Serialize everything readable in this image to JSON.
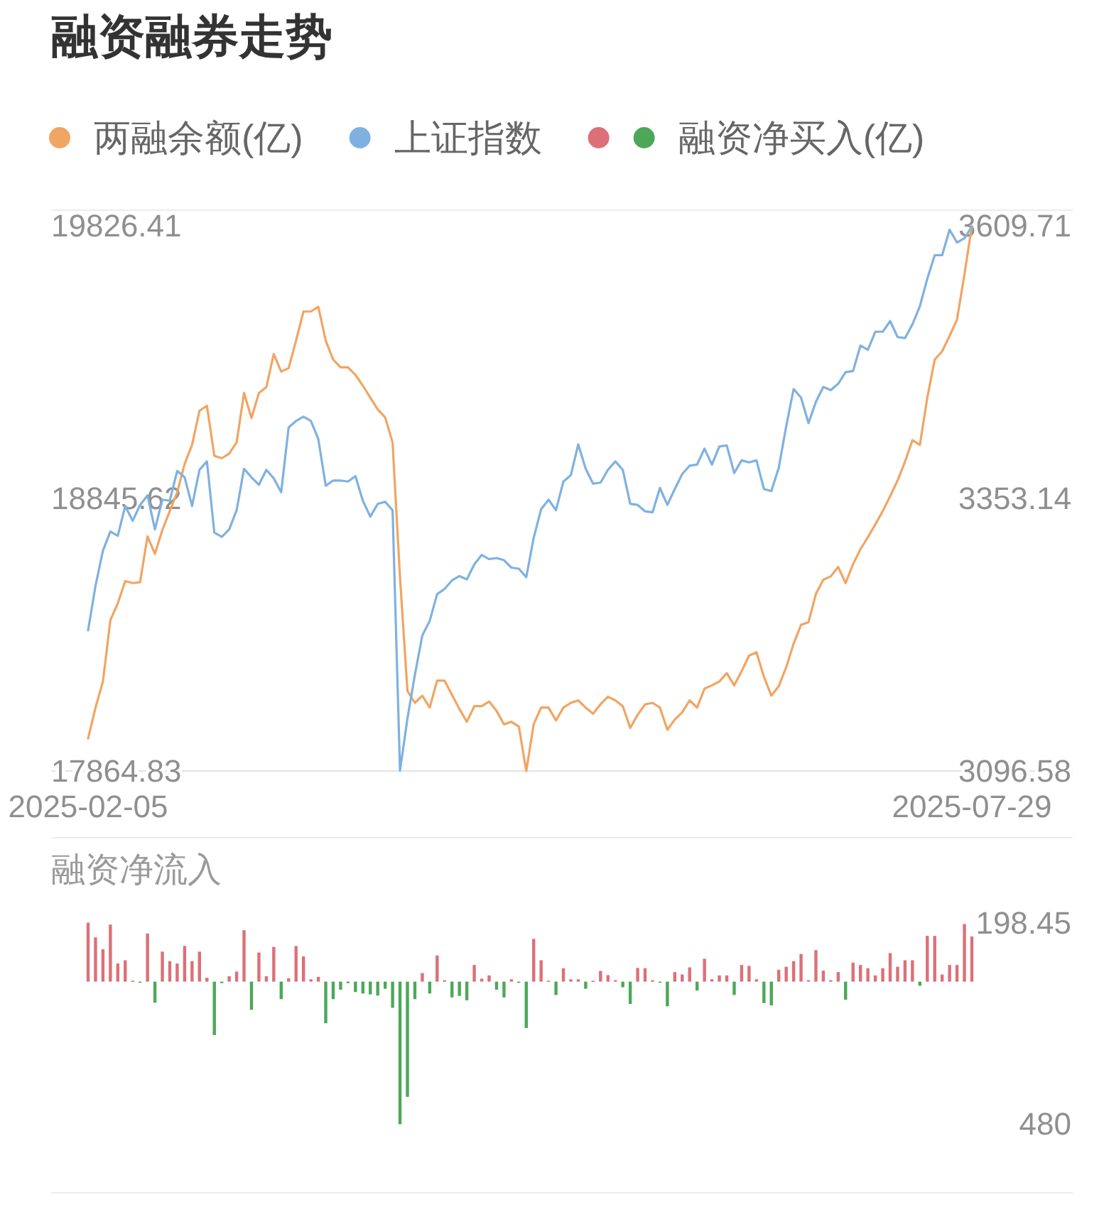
{
  "chart_data": [
    {
      "type": "line",
      "title": "融资融券走势",
      "legend": "top",
      "categories": [
        "2025-02-05",
        null,
        null,
        null,
        null,
        null,
        null,
        null,
        null,
        null,
        null,
        null,
        null,
        null,
        null,
        null,
        null,
        null,
        null,
        null,
        null,
        null,
        null,
        null,
        null,
        null,
        null,
        null,
        null,
        null,
        null,
        null,
        null,
        null,
        null,
        null,
        null,
        null,
        null,
        null,
        null,
        null,
        null,
        null,
        null,
        null,
        null,
        null,
        null,
        null,
        null,
        null,
        null,
        null,
        null,
        null,
        null,
        null,
        null,
        null,
        null,
        null,
        null,
        null,
        null,
        null,
        null,
        null,
        null,
        null,
        null,
        null,
        null,
        null,
        null,
        null,
        null,
        null,
        null,
        null,
        null,
        null,
        null,
        null,
        null,
        null,
        null,
        null,
        null,
        null,
        null,
        null,
        null,
        null,
        null,
        null,
        null,
        null,
        null,
        null,
        null,
        null,
        null,
        null,
        null,
        null,
        null,
        null,
        null,
        null,
        null,
        null,
        null,
        null,
        null,
        null,
        null,
        null,
        null,
        "2025-07-29"
      ],
      "series": [
        {
          "name": "两融余额(亿)",
          "color": "#f0a563",
          "values": [
            17982,
            18093,
            18187,
            18408,
            18468,
            18548,
            18541,
            18544,
            18709,
            18646,
            18732,
            18800,
            18868,
            18970,
            19038,
            19161,
            19179,
            18999,
            18990,
            19007,
            19047,
            19225,
            19135,
            19225,
            19246,
            19365,
            19302,
            19314,
            19413,
            19518,
            19518,
            19535,
            19413,
            19345,
            19317,
            19317,
            19290,
            19251,
            19208,
            19166,
            19137,
            19047,
            18561,
            18153,
            18110,
            18136,
            18093,
            18190,
            18190,
            18139,
            18088,
            18042,
            18098,
            18098,
            18115,
            18081,
            18033,
            18042,
            18025,
            17865,
            18033,
            18093,
            18093,
            18047,
            18093,
            18110,
            18119,
            18093,
            18071,
            18105,
            18132,
            18119,
            18098,
            18020,
            18067,
            18105,
            18110,
            18093,
            18013,
            18050,
            18076,
            18119,
            18093,
            18161,
            18173,
            18187,
            18217,
            18173,
            18224,
            18280,
            18292,
            18204,
            18136,
            18170,
            18238,
            18323,
            18391,
            18400,
            18502,
            18553,
            18565,
            18599,
            18541,
            18609,
            18663,
            18706,
            18752,
            18800,
            18854,
            18910,
            18978,
            19055,
            19038,
            19208,
            19345,
            19375,
            19430,
            19489,
            19651,
            19826
          ]
        },
        {
          "name": "上证指数",
          "color": "#7fb1e0",
          "axis": "y2",
          "values": [
            3229,
            3271,
            3304,
            3322,
            3318,
            3346,
            3332,
            3347,
            3356,
            3324,
            3352,
            3351,
            3379,
            3373,
            3346,
            3380,
            3388,
            3321,
            3317,
            3324,
            3342,
            3381,
            3373,
            3366,
            3380,
            3372,
            3359,
            3420,
            3426,
            3430,
            3426,
            3409,
            3365,
            3370,
            3370,
            3369,
            3374,
            3351,
            3336,
            3348,
            3350,
            3342,
            3097,
            3146,
            3187,
            3224,
            3238,
            3263,
            3268,
            3276,
            3280,
            3277,
            3291,
            3300,
            3296,
            3297,
            3295,
            3288,
            3287,
            3279,
            3316,
            3343,
            3352,
            3342,
            3369,
            3375,
            3404,
            3381,
            3367,
            3368,
            3380,
            3388,
            3380,
            3348,
            3347,
            3341,
            3340,
            3363,
            3347,
            3362,
            3376,
            3384,
            3385,
            3400,
            3385,
            3402,
            3403,
            3377,
            3389,
            3387,
            3389,
            3362,
            3360,
            3382,
            3421,
            3456,
            3448,
            3424,
            3444,
            3458,
            3455,
            3461,
            3472,
            3473,
            3497,
            3493,
            3510,
            3510,
            3520,
            3505,
            3504,
            3517,
            3534,
            3560,
            3582,
            3582,
            3606,
            3594,
            3598,
            3609
          ]
        }
      ],
      "ylim": [
        17864.83,
        19826.41
      ],
      "yticks": [
        17864.83,
        18845.62,
        19826.41
      ],
      "y2lim": [
        3096.58,
        3609.71
      ],
      "y2ticks": [
        3096.58,
        3353.14,
        3609.71
      ]
    },
    {
      "type": "bar",
      "title": "融资净流入",
      "legend": "top",
      "tick_labels": "y",
      "categories": [
        null,
        null,
        null,
        null,
        null,
        null,
        null,
        null,
        null,
        null,
        null,
        null,
        null,
        null,
        null,
        null,
        null,
        null,
        null,
        null,
        null,
        null,
        null,
        null,
        null,
        null,
        null,
        null,
        null,
        null,
        null,
        null,
        null,
        null,
        null,
        null,
        null,
        null,
        null,
        null,
        null,
        null,
        null,
        null,
        null,
        null,
        null,
        null,
        null,
        null,
        null,
        null,
        null,
        null,
        null,
        null,
        null,
        null,
        null,
        null,
        null,
        null,
        null,
        null,
        null,
        null,
        null,
        null,
        null,
        null,
        null,
        null,
        null,
        null,
        null,
        null,
        null,
        null,
        null,
        null,
        null,
        null,
        null,
        null,
        null,
        null,
        null,
        null,
        null,
        null,
        null,
        null,
        null,
        null,
        null,
        null,
        null,
        null,
        null,
        null,
        null,
        null,
        null,
        null,
        null,
        null,
        null,
        null,
        null,
        null,
        null,
        null,
        null,
        null,
        null,
        null,
        null,
        null,
        null,
        null
      ],
      "series": [
        {
          "name": "融资净买入(亿)",
          "colors": [
            "#dc7078",
            "#dc7078",
            "#dc7078",
            "#dc7078",
            "#dc7078",
            "#dc7078",
            "#dc7078",
            "#4ca858",
            "#dc7078",
            "#4ca858",
            "#dc7078",
            "#dc7078",
            "#dc7078",
            "#dc7078",
            "#dc7078",
            "#dc7078",
            "#dc7078",
            "#4ca858",
            "#4ca858",
            "#dc7078",
            "#dc7078",
            "#dc7078",
            "#4ca858",
            "#dc7078",
            "#dc7078",
            "#dc7078",
            "#4ca858",
            "#dc7078",
            "#dc7078",
            "#dc7078",
            "#dc7078",
            "#dc7078",
            "#4ca858",
            "#4ca858",
            "#4ca858",
            "#4ca858",
            "#4ca858",
            "#4ca858",
            "#4ca858",
            "#4ca858",
            "#4ca858",
            "#4ca858",
            "#4ca858",
            "#4ca858",
            "#4ca858",
            "#dc7078",
            "#4ca858",
            "#dc7078",
            "#dc7078",
            "#4ca858",
            "#4ca858",
            "#4ca858",
            "#dc7078",
            "#dc7078",
            "#dc7078",
            "#4ca858",
            "#4ca858",
            "#dc7078",
            "#4ca858",
            "#4ca858",
            "#dc7078",
            "#dc7078",
            "#dc7078",
            "#4ca858",
            "#dc7078",
            "#dc7078",
            "#dc7078",
            "#4ca858",
            "#dc7078",
            "#dc7078",
            "#dc7078",
            "#dc7078",
            "#4ca858",
            "#4ca858",
            "#dc7078",
            "#dc7078",
            "#dc7078",
            "#4ca858",
            "#4ca858",
            "#dc7078",
            "#dc7078",
            "#dc7078",
            "#4ca858",
            "#dc7078",
            "#dc7078",
            "#dc7078",
            "#dc7078",
            "#4ca858",
            "#dc7078",
            "#dc7078",
            "#dc7078",
            "#4ca858",
            "#4ca858",
            "#dc7078",
            "#dc7078",
            "#dc7078",
            "#dc7078",
            "#dc7078",
            "#dc7078",
            "#dc7078",
            "#dc7078",
            "#dc7078",
            "#4ca858",
            "#dc7078",
            "#dc7078",
            "#dc7078",
            "#dc7078",
            "#dc7078",
            "#dc7078",
            "#dc7078",
            "#dc7078",
            "#dc7078",
            "#4ca858",
            "#dc7078",
            "#dc7078",
            "#dc7078",
            "#dc7078",
            "#dc7078",
            "#dc7078",
            "#dc7078"
          ],
          "values": [
            198.45,
            149,
            109,
            192,
            61,
            72,
            3,
            -3,
            162,
            -71,
            101,
            69,
            61,
            120,
            69,
            101,
            13,
            -180,
            -5,
            18,
            34,
            173,
            -95,
            98,
            18,
            117,
            -59,
            11,
            120,
            85,
            8,
            16,
            -140,
            -59,
            -27,
            -5,
            -35,
            -40,
            -43,
            -47,
            -24,
            -88,
            -480,
            -388,
            -59,
            29,
            -40,
            88,
            5,
            -53,
            -48,
            -63,
            56,
            10,
            21,
            -27,
            -53,
            8,
            -3,
            -156,
            144,
            72,
            3,
            -45,
            45,
            8,
            8,
            -24,
            3,
            36,
            22,
            5,
            -19,
            -75,
            46,
            45,
            5,
            -3,
            -83,
            32,
            24,
            48,
            -30,
            77,
            8,
            21,
            21,
            -45,
            56,
            53,
            8,
            -72,
            -80,
            40,
            50,
            69,
            93,
            5,
            106,
            37,
            5,
            32,
            -61,
            64,
            56,
            45,
            21,
            45,
            96,
            50,
            72,
            72,
            -14,
            154,
            154,
            24,
            56,
            56,
            194,
            152
          ]
        }
      ],
      "ylim": [
        -480,
        198.45
      ],
      "yticks": [
        {
          "value": 198.45,
          "label": "198.45"
        },
        {
          "value": -480,
          "label": "480"
        }
      ]
    }
  ]
}
